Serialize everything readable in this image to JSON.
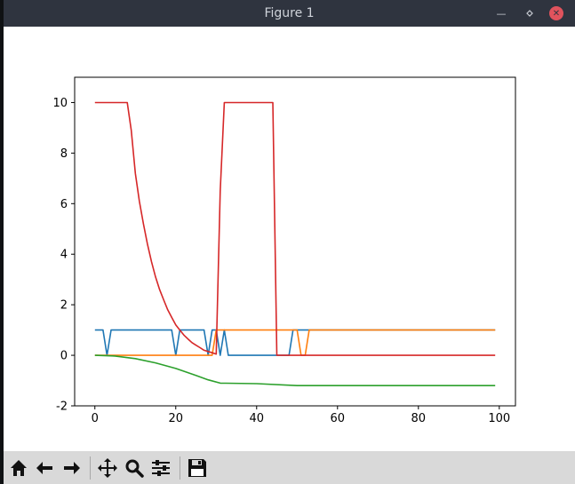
{
  "window": {
    "title": "Figure 1"
  },
  "toolbar": {
    "buttons": [
      {
        "name": "home",
        "icon": "home-icon"
      },
      {
        "name": "back",
        "icon": "arrow-left-icon"
      },
      {
        "name": "forward",
        "icon": "arrow-right-icon"
      },
      {
        "name": "pan",
        "icon": "move-icon"
      },
      {
        "name": "zoom",
        "icon": "magnifier-icon"
      },
      {
        "name": "configure-subplots",
        "icon": "sliders-icon"
      },
      {
        "name": "save",
        "icon": "floppy-disk-icon"
      }
    ]
  },
  "chart_data": {
    "type": "line",
    "title": "",
    "xlabel": "",
    "ylabel": "",
    "xlim": [
      -5,
      104
    ],
    "ylim": [
      -2,
      11
    ],
    "xticks": [
      0,
      20,
      40,
      60,
      80,
      100
    ],
    "yticks": [
      -2,
      0,
      2,
      4,
      6,
      8,
      10
    ],
    "grid": false,
    "legend": false,
    "series": [
      {
        "color": "#1f77b4",
        "points": [
          [
            0,
            1
          ],
          [
            2,
            1
          ],
          [
            3,
            0
          ],
          [
            4,
            1
          ],
          [
            19,
            1
          ],
          [
            20,
            0
          ],
          [
            21,
            1
          ],
          [
            27,
            1
          ],
          [
            28,
            0
          ],
          [
            29,
            1
          ],
          [
            30,
            1
          ],
          [
            31,
            0
          ],
          [
            32,
            1
          ],
          [
            33,
            0
          ],
          [
            48,
            0
          ],
          [
            49,
            1
          ],
          [
            99,
            1
          ]
        ]
      },
      {
        "color": "#ff7f0e",
        "points": [
          [
            0,
            0
          ],
          [
            29,
            0
          ],
          [
            30,
            1
          ],
          [
            50,
            1
          ],
          [
            51,
            0
          ],
          [
            52,
            0
          ],
          [
            53,
            1
          ],
          [
            99,
            1
          ]
        ]
      },
      {
        "color": "#2ca02c",
        "points": [
          [
            0,
            0
          ],
          [
            5,
            -0.03
          ],
          [
            10,
            -0.13
          ],
          [
            15,
            -0.3
          ],
          [
            20,
            -0.52
          ],
          [
            25,
            -0.8
          ],
          [
            28,
            -0.97
          ],
          [
            31,
            -1.1
          ],
          [
            40,
            -1.12
          ],
          [
            50,
            -1.2
          ],
          [
            99,
            -1.2
          ]
        ]
      },
      {
        "color": "#d62728",
        "points": [
          [
            0,
            10
          ],
          [
            8,
            10
          ],
          [
            9,
            8.9
          ],
          [
            10,
            7.2
          ],
          [
            11,
            6.1
          ],
          [
            12,
            5.2
          ],
          [
            13,
            4.4
          ],
          [
            14,
            3.7
          ],
          [
            15,
            3.1
          ],
          [
            16,
            2.6
          ],
          [
            17,
            2.2
          ],
          [
            18,
            1.8
          ],
          [
            19,
            1.5
          ],
          [
            20,
            1.2
          ],
          [
            21,
            1.0
          ],
          [
            22,
            0.8
          ],
          [
            23,
            0.65
          ],
          [
            24,
            0.5
          ],
          [
            25,
            0.4
          ],
          [
            26,
            0.3
          ],
          [
            27,
            0.2
          ],
          [
            28,
            0.15
          ],
          [
            29,
            0.1
          ],
          [
            30,
            0.05
          ],
          [
            31,
            6.5
          ],
          [
            32,
            10
          ],
          [
            44,
            10
          ],
          [
            45,
            0
          ],
          [
            99,
            0
          ]
        ]
      }
    ]
  }
}
